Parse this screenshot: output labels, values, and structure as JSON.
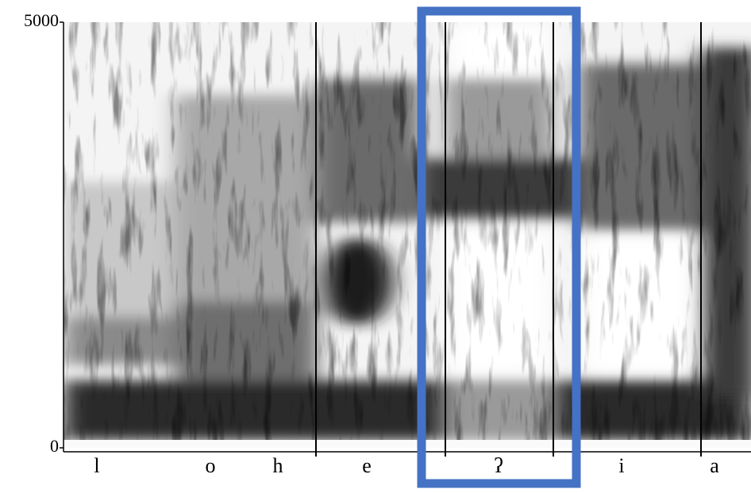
{
  "chart_data": {
    "type": "spectrogram",
    "categories": [
      "l",
      "o",
      "h",
      "e",
      "ʔ",
      "i",
      "a"
    ],
    "ylim": [
      0,
      5000
    ],
    "yticks": [
      0,
      5000
    ]
  }
}
